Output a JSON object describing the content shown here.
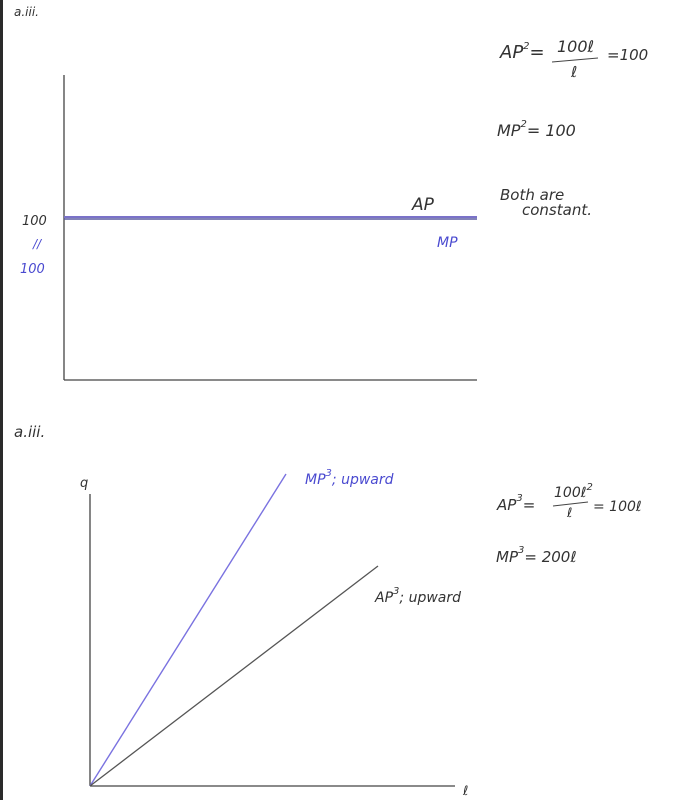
{
  "colors": {
    "ink": "#333333",
    "blue_ink": "#4a4ad0",
    "purple_line": "#7a72c8",
    "gray_line": "#555555"
  },
  "part1": {
    "label": "a.iii.",
    "graph": {
      "y_tick_label": "100",
      "equiv_mark": "//",
      "y_tick_label_blue": "100",
      "ap_label": "AP",
      "mp_label": "MP"
    },
    "notes": {
      "ap_lhs": "AP",
      "ap_sup": "2",
      "ap_eq": "=",
      "ap_num": "100ℓ",
      "ap_den": "ℓ",
      "ap_result": "=100",
      "mp_lhs": "MP",
      "mp_sup": "2",
      "mp_rhs": "= 100",
      "conclusion_line1": "Both are",
      "conclusion_line2": "constant."
    }
  },
  "part2": {
    "label": "a.iii.",
    "graph": {
      "y_axis_label": "q",
      "x_axis_label": "ℓ",
      "mp_label": "MP",
      "mp_sup": "3",
      "mp_desc": "; upward",
      "ap_label": "AP",
      "ap_sup": "3",
      "ap_desc": "; upward"
    },
    "notes": {
      "ap_lhs": "AP",
      "ap_sup": "3",
      "ap_eq": "=",
      "ap_num": "100ℓ",
      "ap_num_sup": "2",
      "ap_den": "ℓ",
      "ap_result": "= 100ℓ",
      "mp_lhs": "MP",
      "mp_sup": "3",
      "mp_rhs": "= 200ℓ"
    }
  }
}
